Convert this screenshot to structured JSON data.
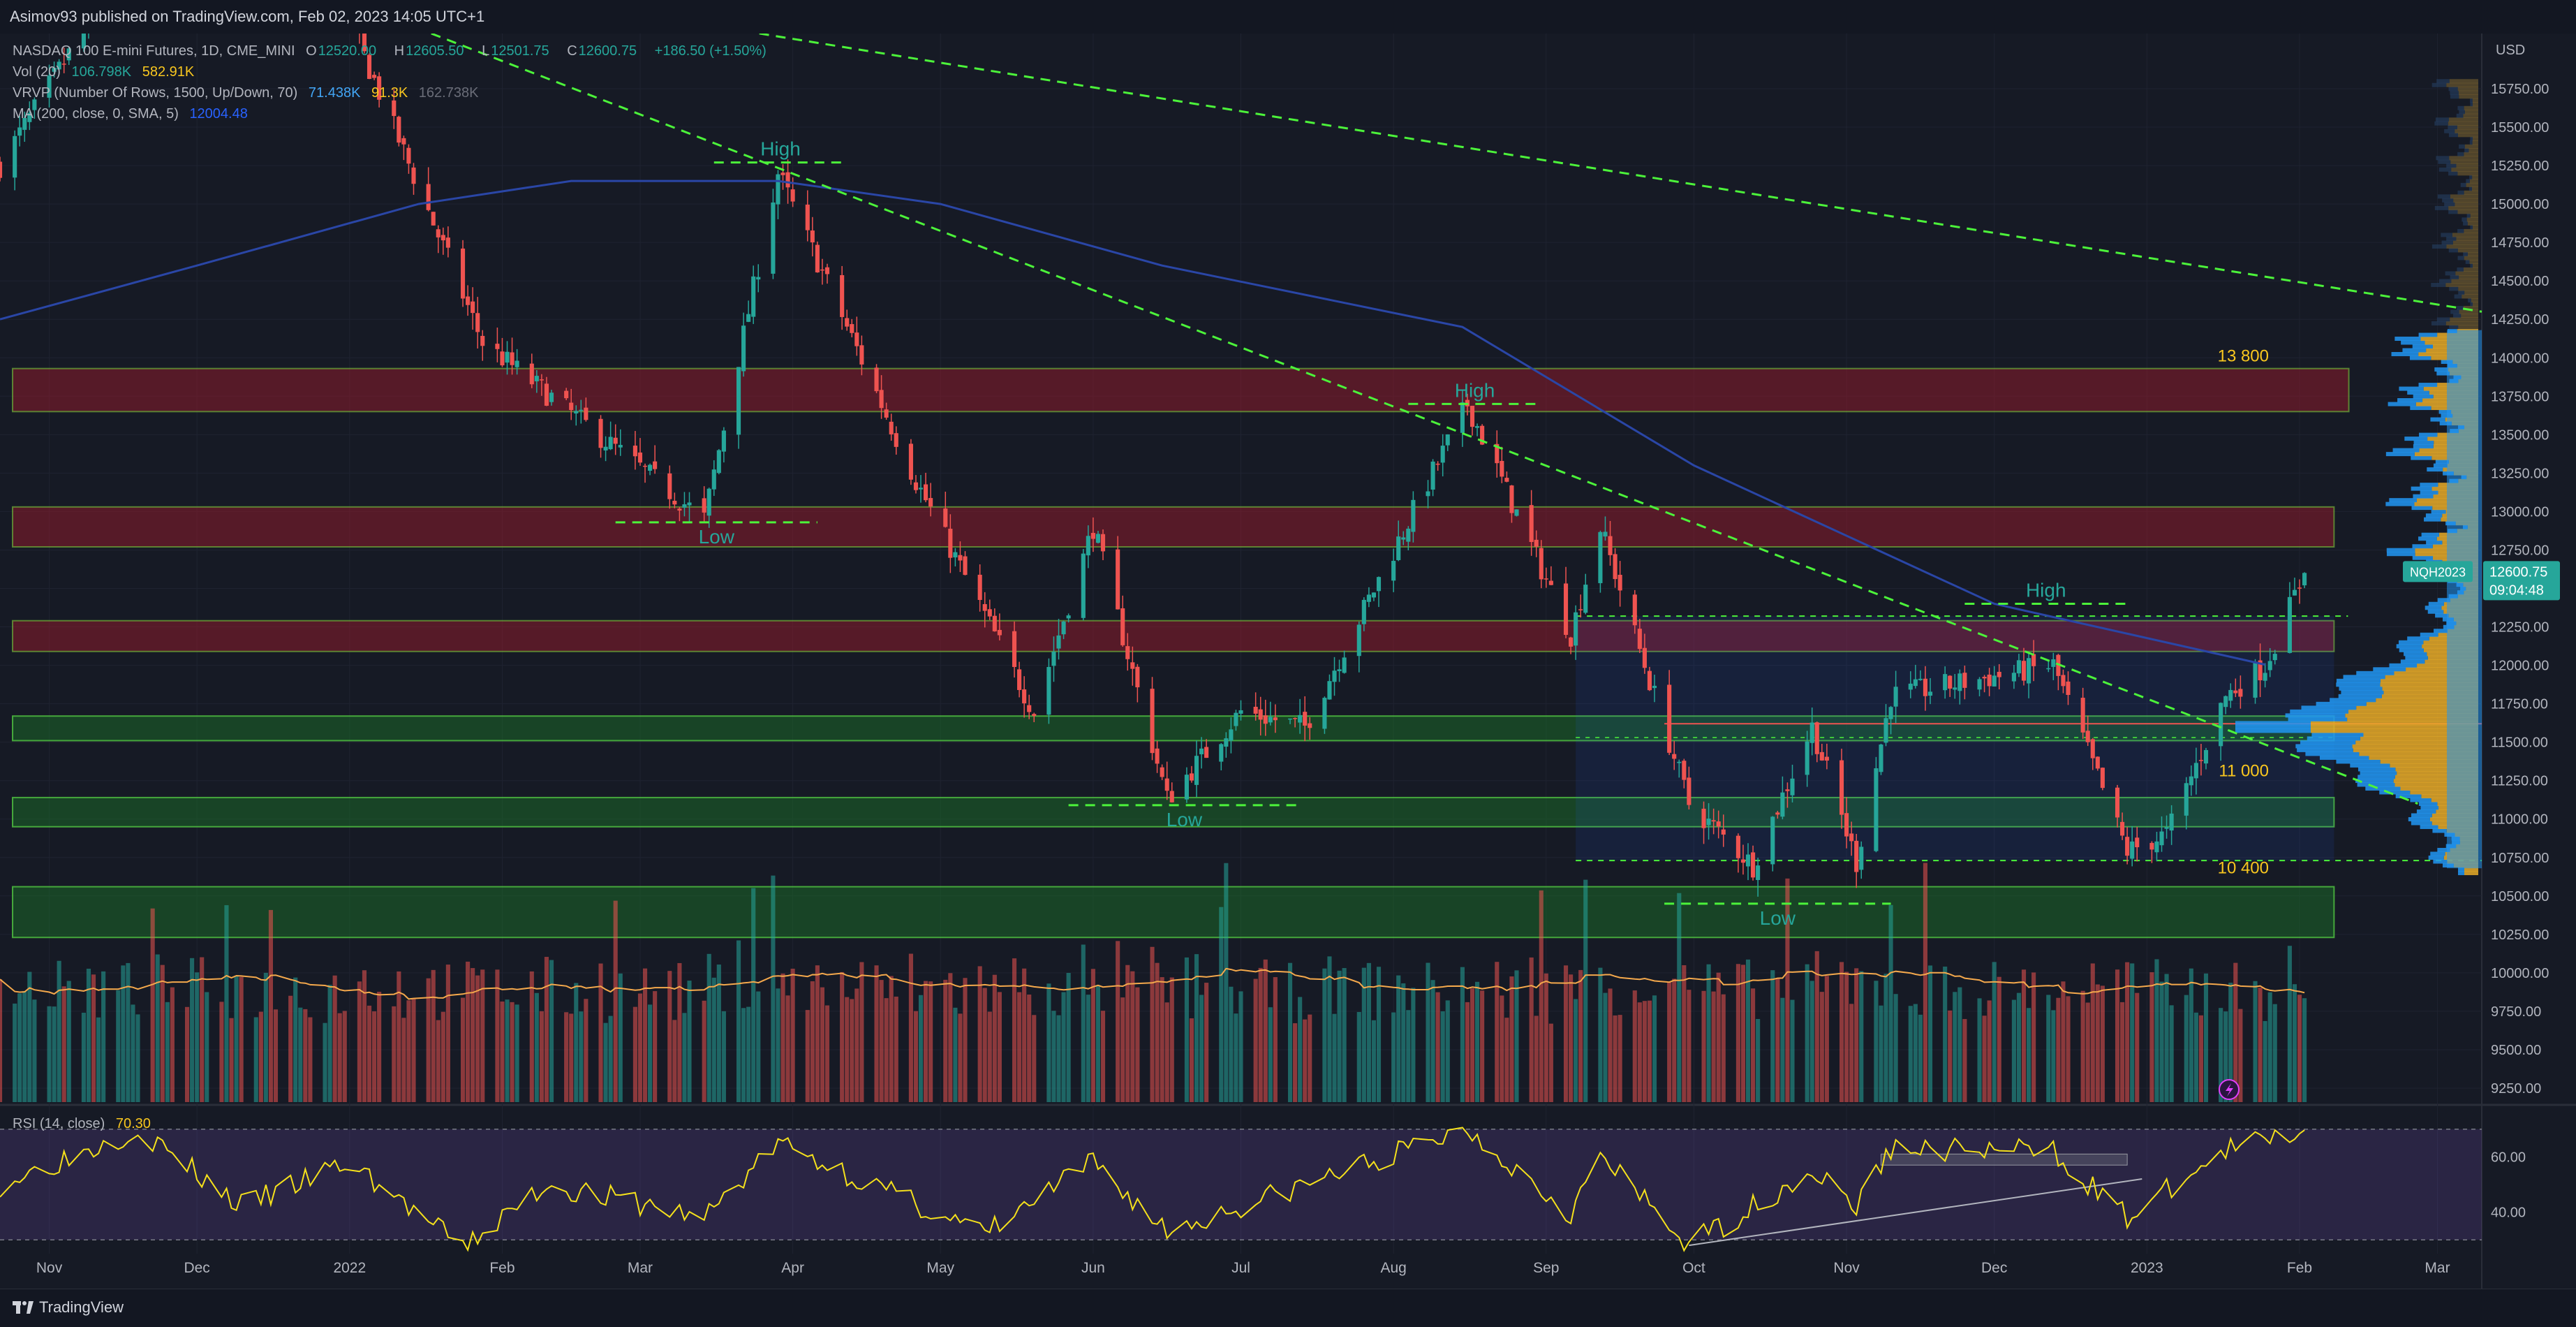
{
  "header": {
    "published": "Asimov93 published on TradingView.com, Feb 02, 2023 14:05 UTC+1"
  },
  "legend": {
    "symbol_line": "NASDAQ 100 E-mini Futures, 1D, CME_MINI",
    "o_label": "O",
    "o_value": "12520.00",
    "h_label": "H",
    "h_value": "12605.50",
    "l_label": "L",
    "l_value": "12501.75",
    "c_label": "C",
    "c_value": "12600.75",
    "change": "+186.50 (+1.50%)",
    "vol_label": "Vol (20)",
    "vol_value1": "106.798K",
    "vol_value2": "582.91K",
    "vrvp_label": "VRVP (Number Of Rows, 1500, Up/Down, 70)",
    "vrvp_value1": "71.438K",
    "vrvp_value2": "91.3K",
    "vrvp_value3": "162.738K",
    "ma_label": "MA (200, close, 0, SMA, 5)",
    "ma_value": "12004.48",
    "rsi_label": "RSI (14, close)",
    "rsi_value": "70.30"
  },
  "price_axis": {
    "currency": "USD",
    "ticks": [
      "15750.00",
      "15500.00",
      "15250.00",
      "15000.00",
      "14750.00",
      "14500.00",
      "14250.00",
      "14000.00",
      "13750.00",
      "13500.00",
      "13250.00",
      "13000.00",
      "12750.00",
      "12500.00",
      "12250.00",
      "12000.00",
      "11750.00",
      "11500.00",
      "11250.00",
      "11000.00",
      "10750.00",
      "10500.00",
      "10250.00",
      "10000.00",
      "9750.00",
      "9500.00",
      "9250.00"
    ],
    "current_symbol": "NQH2023",
    "current_price": "12600.75",
    "countdown": "09:04:48"
  },
  "rsi_axis": {
    "ticks": [
      "60.00",
      "40.00"
    ]
  },
  "time_axis": [
    "Nov",
    "Dec",
    "2022",
    "Feb",
    "Mar",
    "Apr",
    "May",
    "Jun",
    "Jul",
    "Aug",
    "Sep",
    "Oct",
    "Nov",
    "Dec",
    "2023",
    "Feb",
    "Mar"
  ],
  "annotations": {
    "level_13800": "13 800",
    "level_11000": "11 000",
    "level_10400": "10 400",
    "high": "High",
    "low": "Low"
  },
  "colors": {
    "up": "#26a69a",
    "down": "#ef5350",
    "ma": "#2a46a6",
    "trend": "#4cf33a",
    "rsi": "#f5e11c",
    "price_tag": "#26a69a"
  },
  "chart_data": {
    "type": "candlestick",
    "title": "NASDAQ 100 E-mini Futures, 1D, CME_MINI",
    "x_range": [
      "2021-10-22",
      "2023-03-10"
    ],
    "y_range": [
      9100,
      15900
    ],
    "key_points": [
      {
        "date": "2021-10-22",
        "price": 15250
      },
      {
        "date": "2021-11-19",
        "price": 16700
      },
      {
        "date": "2021-12-28",
        "price": 16500
      },
      {
        "date": "2022-01-28",
        "price": 14100
      },
      {
        "date": "2022-03-14",
        "price": 12950
      },
      {
        "date": "2022-03-29",
        "price": 15200
      },
      {
        "date": "2022-04-26",
        "price": 13200
      },
      {
        "date": "2022-05-20",
        "price": 11700
      },
      {
        "date": "2022-06-01",
        "price": 12900
      },
      {
        "date": "2022-06-16",
        "price": 11130
      },
      {
        "date": "2022-07-01",
        "price": 11700
      },
      {
        "date": "2022-07-14",
        "price": 11600
      },
      {
        "date": "2022-08-16",
        "price": 13700
      },
      {
        "date": "2022-09-06",
        "price": 12200
      },
      {
        "date": "2022-09-12",
        "price": 12900
      },
      {
        "date": "2022-09-30",
        "price": 11100
      },
      {
        "date": "2022-10-13",
        "price": 10700
      },
      {
        "date": "2022-10-25",
        "price": 11600
      },
      {
        "date": "2022-11-03",
        "price": 10720
      },
      {
        "date": "2022-11-10",
        "price": 11800
      },
      {
        "date": "2022-12-13",
        "price": 12000
      },
      {
        "date": "2022-12-28",
        "price": 10790
      },
      {
        "date": "2023-01-05",
        "price": 10900
      },
      {
        "date": "2023-01-17",
        "price": 11800
      },
      {
        "date": "2023-01-25",
        "price": 12000
      },
      {
        "date": "2023-02-02",
        "price": 12600.75
      }
    ],
    "ma200": [
      {
        "date": "2021-10-22",
        "price": 14250
      },
      {
        "date": "2021-12-01",
        "price": 14600
      },
      {
        "date": "2022-01-15",
        "price": 15000
      },
      {
        "date": "2022-02-15",
        "price": 15150
      },
      {
        "date": "2022-03-29",
        "price": 15150
      },
      {
        "date": "2022-05-01",
        "price": 15000
      },
      {
        "date": "2022-06-15",
        "price": 14600
      },
      {
        "date": "2022-08-15",
        "price": 14200
      },
      {
        "date": "2022-10-01",
        "price": 13300
      },
      {
        "date": "2022-12-01",
        "price": 12400
      },
      {
        "date": "2023-01-25",
        "price": 12004.48
      }
    ],
    "zones": [
      {
        "from": 13650,
        "to": 13930,
        "color": "red",
        "end": "2023-02-11"
      },
      {
        "from": 12770,
        "to": 13030,
        "color": "red",
        "end": "2023-02-08"
      },
      {
        "from": 12090,
        "to": 12290,
        "color": "red",
        "end": "2023-02-08"
      },
      {
        "from": 11510,
        "to": 11670,
        "color": "green",
        "end": "2023-02-08"
      },
      {
        "from": 10950,
        "to": 11140,
        "color": "green",
        "end": "2023-02-08"
      },
      {
        "from": 10230,
        "to": 10560,
        "color": "green",
        "end": "2023-02-08"
      }
    ],
    "trendlines": [
      {
        "from": {
          "date": "2021-12-01",
          "price": 16700
        },
        "to": {
          "date": "2023-03-10",
          "price": 14300
        }
      },
      {
        "from": {
          "date": "2021-12-01",
          "price": 16700
        },
        "to": {
          "date": "2023-02-25",
          "price": 11100
        }
      }
    ],
    "rsi": {
      "range": [
        25,
        78
      ],
      "ticks": [
        60,
        40
      ],
      "key_points": [
        {
          "date": "2021-10-22",
          "price": 50
        },
        {
          "date": "2021-11-19",
          "price": 70
        },
        {
          "date": "2021-12-10",
          "price": 42
        },
        {
          "date": "2022-01-01",
          "price": 58
        },
        {
          "date": "2022-01-24",
          "price": 27
        },
        {
          "date": "2022-02-10",
          "price": 50
        },
        {
          "date": "2022-03-14",
          "price": 38
        },
        {
          "date": "2022-03-29",
          "price": 65
        },
        {
          "date": "2022-05-10",
          "price": 32
        },
        {
          "date": "2022-06-01",
          "price": 58
        },
        {
          "date": "2022-06-16",
          "price": 33
        },
        {
          "date": "2022-08-16",
          "price": 70
        },
        {
          "date": "2022-09-06",
          "price": 40
        },
        {
          "date": "2022-09-12",
          "price": 60
        },
        {
          "date": "2022-09-30",
          "price": 28
        },
        {
          "date": "2022-10-25",
          "price": 55
        },
        {
          "date": "2022-11-03",
          "price": 42
        },
        {
          "date": "2022-11-10",
          "price": 63
        },
        {
          "date": "2022-12-13",
          "price": 62
        },
        {
          "date": "2022-12-28",
          "price": 38
        },
        {
          "date": "2023-01-17",
          "price": 62
        },
        {
          "date": "2023-02-02",
          "price": 70.3
        }
      ]
    }
  }
}
